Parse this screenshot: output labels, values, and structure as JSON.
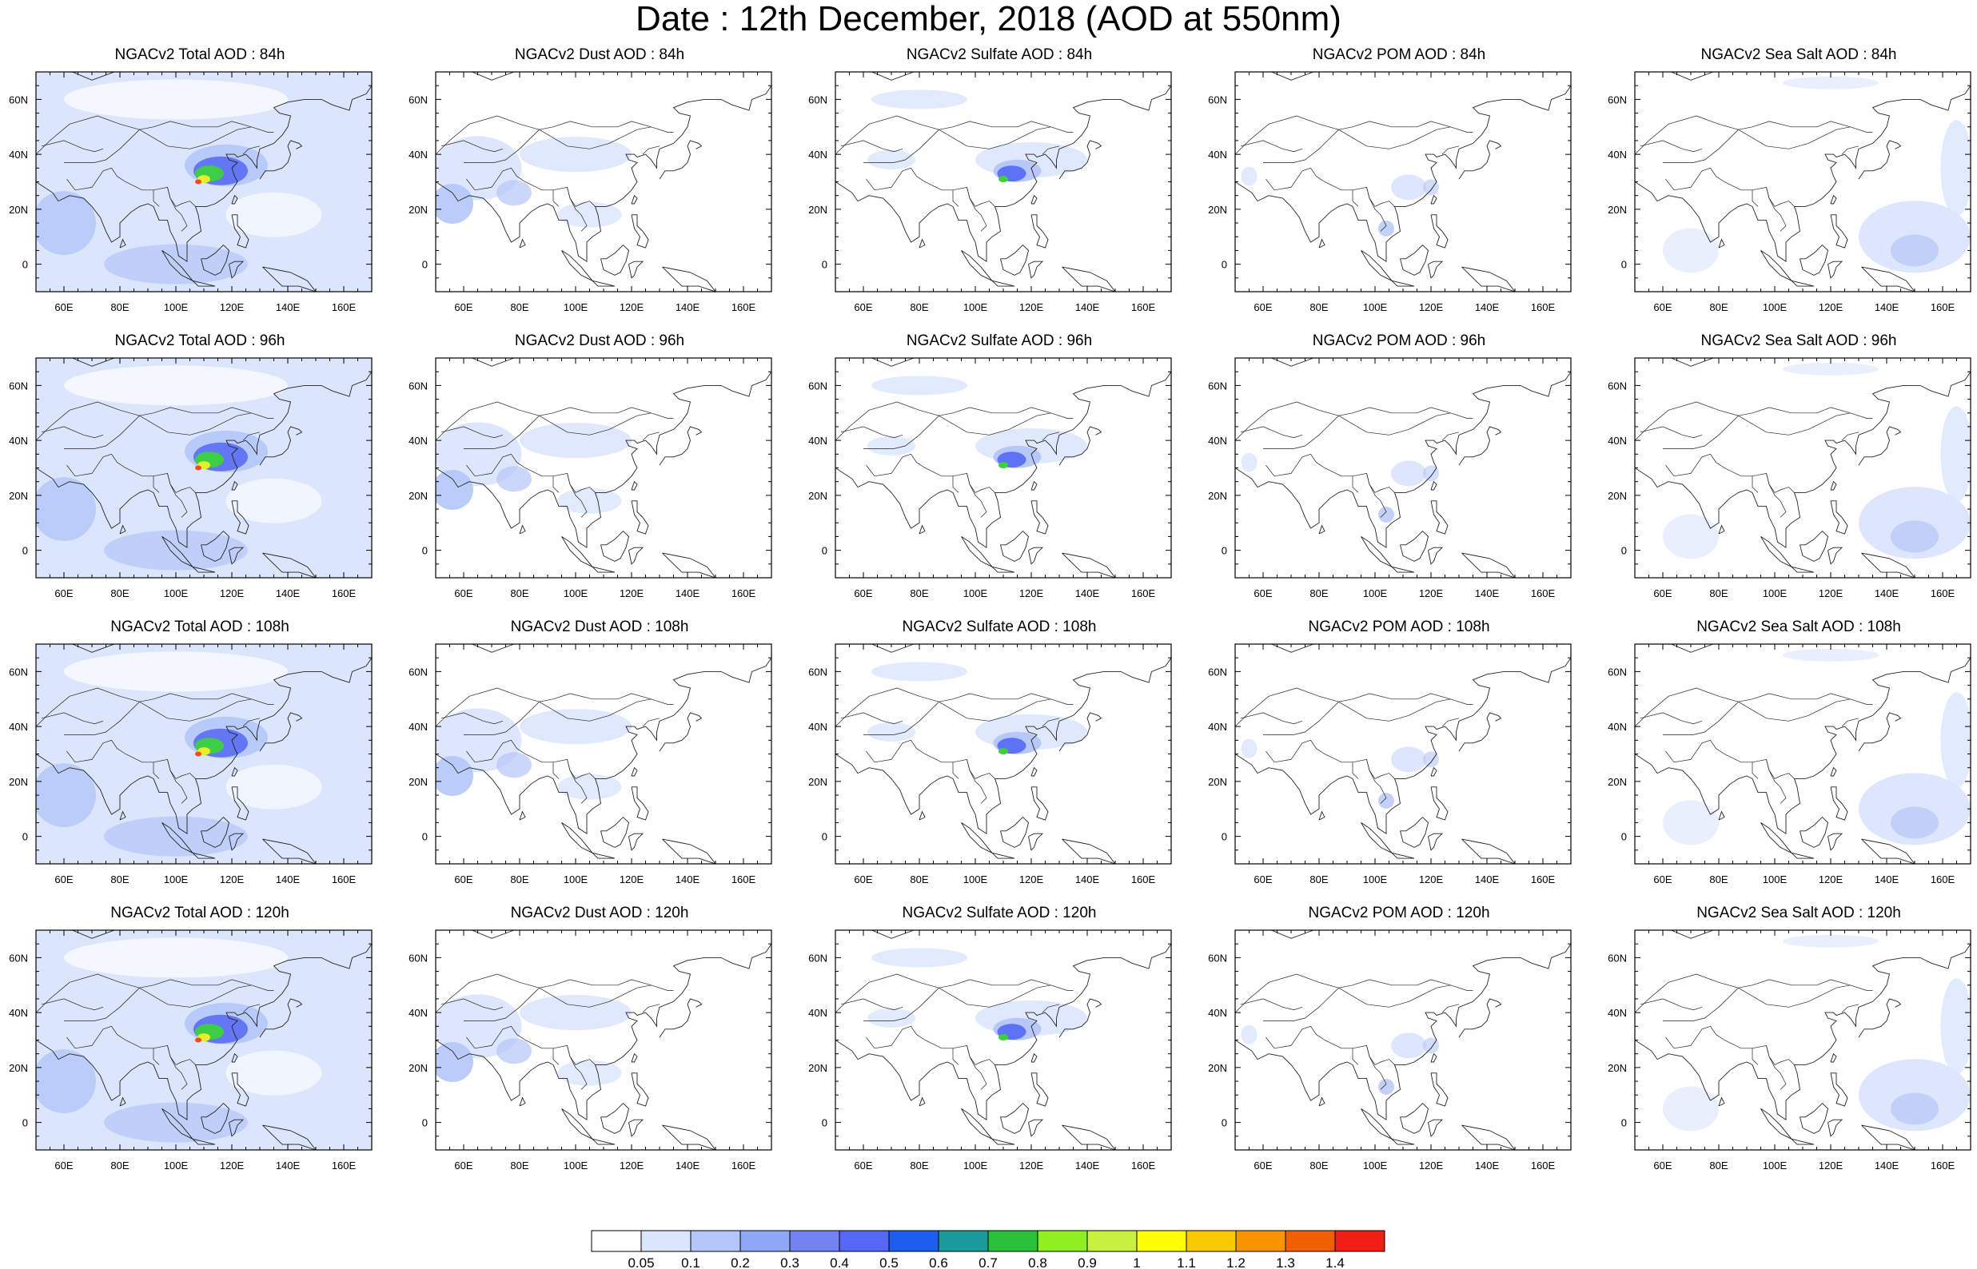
{
  "title": "Date : 12th December, 2018 (AOD at 550nm)",
  "lon_ticks": [
    "60E",
    "80E",
    "100E",
    "120E",
    "140E",
    "160E"
  ],
  "lat_ticks": [
    "60N",
    "40N",
    "20N",
    "0"
  ],
  "colors": {
    "fill_light": "#dbe5fc",
    "fill_mid": "#b4c6f8",
    "fill_blue": "#5468f4",
    "fill_green": "#3bd33b",
    "fill_yellow": "#e6f02a",
    "fill_red": "#f24a1f",
    "coast": "#222222"
  },
  "rows": [
    {
      "hour": "84h",
      "titles": [
        "NGACv2 Total AOD : 84h",
        "NGACv2 Dust AOD : 84h",
        "NGACv2 Sulfate AOD : 84h",
        "NGACv2 POM AOD : 84h",
        "NGACv2 Sea Salt AOD : 84h"
      ]
    },
    {
      "hour": "96h",
      "titles": [
        "NGACv2 Total AOD : 96h",
        "NGACv2 Dust AOD : 96h",
        "NGACv2 Sulfate AOD : 96h",
        "NGACv2 POM AOD : 96h",
        "NGACv2 Sea Salt AOD : 96h"
      ]
    },
    {
      "hour": "108h",
      "titles": [
        "NGACv2 Total AOD : 108h",
        "NGACv2 Dust AOD : 108h",
        "NGACv2 Sulfate AOD : 108h",
        "NGACv2 POM AOD : 108h",
        "NGACv2 Sea Salt AOD : 108h"
      ]
    },
    {
      "hour": "120h",
      "titles": [
        "NGACv2 Total AOD : 120h",
        "NGACv2 Dust AOD : 120h",
        "NGACv2 Sulfate AOD : 120h",
        "NGACv2 POM AOD : 120h",
        "NGACv2 Sea Salt  AOD : 120h"
      ]
    }
  ],
  "colorbar": {
    "labels": [
      "0.05",
      "0.1",
      "0.2",
      "0.3",
      "0.4",
      "0.5",
      "0.6",
      "0.7",
      "0.8",
      "0.9",
      "1",
      "1.1",
      "1.2",
      "1.3",
      "1.4"
    ],
    "colors": [
      "#ffffff",
      "#dbe5fc",
      "#b4c6f8",
      "#8fa8f6",
      "#7383f4",
      "#5468f4",
      "#1c5ff0",
      "#1a9a9a",
      "#2ac03a",
      "#8ef020",
      "#c8f040",
      "#ffff00",
      "#f8c800",
      "#f89400",
      "#f06000",
      "#f01e14"
    ]
  }
}
